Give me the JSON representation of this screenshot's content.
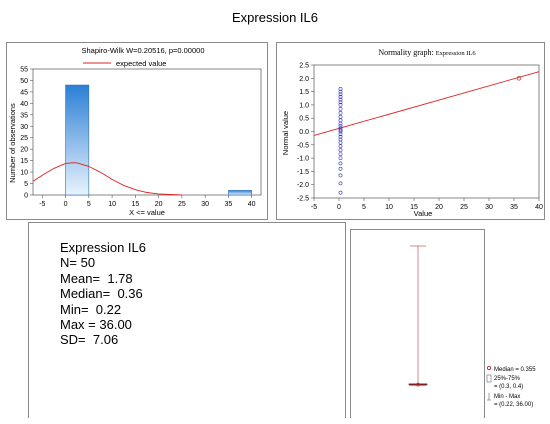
{
  "title": "Expression IL6",
  "histogram": {
    "subtitle": "Shapiro-Wilk W=0.20516, p=0.00000",
    "legend": "expected value",
    "xlabel": "X <= value",
    "ylabel": "Number of observations"
  },
  "normality": {
    "title": "Normality graph: ",
    "title_small": "Expression IL6",
    "xlabel": "Value",
    "ylabel": "Normal value"
  },
  "stats": {
    "title": "Expression IL6",
    "n": "N= 50",
    "mean": "Mean=  1.78",
    "median": "Median=  0.36",
    "min": "Min=  0.22",
    "max": "Max = 36.00",
    "sd": "SD=  7.06"
  },
  "boxplot": {
    "legend_median": "Median = 0.355",
    "legend_iqr_1": "25%-75%",
    "legend_iqr_2": "= (0.3, 0.4)",
    "legend_range_1": "Min - Max",
    "legend_range_2": "= (0.22, 36.00)"
  },
  "colors": {
    "bar": "#2b7fd6",
    "curve": "#e02020",
    "points": "#3030c0"
  },
  "chart_data": [
    {
      "type": "bar",
      "title": "Shapiro-Wilk W=0.20516, p=0.00000",
      "xlabel": "X <= value",
      "ylabel": "Number of observations",
      "bins": [
        [
          0,
          5
        ],
        [
          35,
          40
        ]
      ],
      "values": [
        48,
        2
      ],
      "expected_curve": {
        "x": [
          -7,
          -5,
          -2.5,
          0,
          1.78,
          2.5,
          5,
          7.5,
          10,
          12.5,
          15,
          17.5,
          20,
          22.5,
          25
        ],
        "y": [
          6.0,
          8.6,
          11.6,
          13.8,
          14.1,
          14.0,
          12.5,
          9.9,
          6.8,
          4.2,
          2.3,
          1.1,
          0.5,
          0.2,
          0.05
        ]
      },
      "xlim": [
        -7,
        42
      ],
      "ylim": [
        0,
        55
      ],
      "xticks": [
        -5,
        0,
        5,
        10,
        15,
        20,
        25,
        30,
        35,
        40
      ],
      "yticks": [
        0,
        5,
        10,
        15,
        20,
        25,
        30,
        35,
        40,
        45,
        50,
        55
      ],
      "legend": [
        "expected value"
      ]
    },
    {
      "type": "scatter",
      "title": "Normality graph: Expression IL6",
      "xlabel": "Value",
      "ylabel": "Normal value",
      "points_x": 0.3,
      "points_y": [
        -2.3,
        -1.95,
        -1.65,
        -1.4,
        -1.2,
        -1.0,
        -0.85,
        -0.7,
        -0.55,
        -0.42,
        -0.3,
        -0.2,
        -0.1,
        0.0,
        0.05,
        0.12,
        0.2,
        0.3,
        0.42,
        0.55,
        0.7,
        0.85,
        1.0,
        1.1,
        1.2,
        1.3,
        1.4,
        1.5,
        1.6
      ],
      "outlier": [
        36,
        2.0
      ],
      "reference_line": [
        [
          -5,
          -0.15
        ],
        [
          40,
          2.25
        ]
      ],
      "xlim": [
        -5,
        40
      ],
      "ylim": [
        -2.5,
        2.5
      ],
      "xticks": [
        -5,
        0,
        5,
        10,
        15,
        20,
        25,
        30,
        35,
        40
      ],
      "yticks": [
        -2.5,
        -2.0,
        -1.5,
        -1.0,
        -0.5,
        0.0,
        0.5,
        1.0,
        1.5,
        2.0,
        2.5
      ]
    },
    {
      "type": "box",
      "median": 0.355,
      "q1": 0.3,
      "q3": 0.4,
      "min": 0.22,
      "max": 36.0,
      "legend": [
        "Median = 0.355",
        "25%-75% = (0.3, 0.4)",
        "Min - Max = (0.22, 36.00)"
      ]
    }
  ]
}
